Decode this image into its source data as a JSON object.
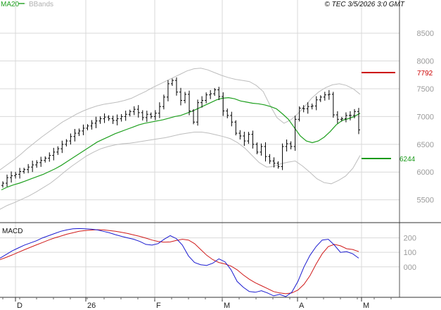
{
  "header": {
    "ma_label": "MA20",
    "bb_label": "BBands",
    "credit": "© TEC 3/5/2026 3:0 GMT"
  },
  "colors": {
    "ma": "#1fa01f",
    "bbands": "#bdbdbd",
    "price": "#000000",
    "resistance": "#cc0000",
    "support": "#1a9a1a",
    "macd": "#1a1ad0",
    "signal": "#d01a1a",
    "grid": "#d9d9d9"
  },
  "chart_data": [
    {
      "type": "ohlc",
      "title": "",
      "y_ticks": [
        8500,
        8000,
        7500,
        7000,
        6500,
        6000,
        5500
      ],
      "ylim": [
        5090,
        8920
      ],
      "x_ticks": [
        "D",
        "26",
        "F",
        "M",
        "A",
        "M"
      ],
      "grid": true,
      "annotations": [
        {
          "label": "7792",
          "value": 7792,
          "color": "#cc0000"
        },
        {
          "label": "6244",
          "value": 6244,
          "color": "#1a9a1a"
        }
      ],
      "series": [
        {
          "name": "price",
          "values": [
            5800,
            5900,
            5935,
            5960,
            6010,
            6045,
            6090,
            6130,
            6170,
            6210,
            6250,
            6300,
            6360,
            6420,
            6500,
            6560,
            6640,
            6700,
            6740,
            6790,
            6830,
            6880,
            6920,
            6960,
            6990,
            6960,
            6930,
            6960,
            7000,
            7040,
            7090,
            7130,
            7070,
            6980,
            7040,
            7000,
            7060,
            7180,
            7350,
            7590,
            7650,
            7440,
            7290,
            7400,
            7100,
            6900,
            7250,
            7290,
            7390,
            7410,
            7480,
            7360,
            7100,
            7020,
            6900,
            6700,
            6650,
            6560,
            6680,
            6500,
            6360,
            6460,
            6280,
            6200,
            6160,
            6100,
            6460,
            6510,
            6460,
            6950,
            7150,
            7140,
            7180,
            7190,
            7300,
            7350,
            7390,
            7400,
            7030,
            6950,
            6960,
            7020,
            7020,
            7090,
            6760
          ]
        },
        {
          "name": "MA20",
          "values": [
            5680,
            5730,
            5770,
            5800,
            5840,
            5880,
            5920,
            5960,
            6010,
            6060,
            6120,
            6190,
            6260,
            6330,
            6400,
            6470,
            6540,
            6590,
            6640,
            6690,
            6730,
            6770,
            6810,
            6850,
            6880,
            6900,
            6920,
            6940,
            6970,
            7000,
            7020,
            7060,
            7100,
            7150,
            7200,
            7250,
            7300,
            7330,
            7340,
            7320,
            7280,
            7260,
            7240,
            7230,
            7210,
            7180,
            7140,
            7050,
            6950,
            6800,
            6650,
            6560,
            6530,
            6560,
            6630,
            6730,
            6850,
            6930,
            6960,
            7000,
            7060
          ]
        },
        {
          "name": "BBands upper",
          "values": [
            6040,
            6130,
            6220,
            6320,
            6430,
            6530,
            6630,
            6720,
            6810,
            6900,
            6970,
            7040,
            7100,
            7150,
            7190,
            7220,
            7240,
            7260,
            7290,
            7330,
            7390,
            7450,
            7520,
            7580,
            7640,
            7700,
            7760,
            7820,
            7860,
            7870,
            7840,
            7790,
            7740,
            7700,
            7670,
            7650,
            7630,
            7560,
            7450,
            7200,
            6980,
            6880,
            6940,
            7050,
            7180,
            7330,
            7440,
            7520,
            7570,
            7590,
            7560,
            7500,
            7400
          ]
        },
        {
          "name": "BBands lower",
          "values": [
            5330,
            5400,
            5450,
            5510,
            5570,
            5640,
            5720,
            5800,
            5900,
            6010,
            6110,
            6200,
            6290,
            6360,
            6420,
            6460,
            6490,
            6510,
            6520,
            6540,
            6560,
            6580,
            6600,
            6620,
            6650,
            6680,
            6700,
            6720,
            6720,
            6700,
            6670,
            6640,
            6600,
            6530,
            6430,
            6300,
            6170,
            6090,
            6100,
            6150,
            6180,
            6200,
            6110,
            6000,
            5880,
            5810,
            5790,
            5850,
            5930,
            6070,
            6300
          ]
        }
      ]
    },
    {
      "type": "line",
      "title": "MACD",
      "y_ticks": [
        "200",
        "100",
        "000"
      ],
      "ylim": [
        -210,
        300
      ],
      "series": [
        {
          "name": "MACD",
          "values": [
            60,
            85,
            110,
            130,
            150,
            165,
            180,
            200,
            215,
            230,
            245,
            255,
            262,
            264,
            262,
            260,
            255,
            245,
            235,
            222,
            210,
            200,
            190,
            175,
            155,
            150,
            160,
            190,
            215,
            195,
            150,
            75,
            30,
            15,
            10,
            25,
            55,
            35,
            -20,
            -100,
            -140,
            -170,
            -175,
            -165,
            -180,
            -200,
            -190,
            -205,
            -175,
            -100,
            0,
            80,
            140,
            185,
            190,
            150,
            100,
            105,
            90,
            60
          ]
        },
        {
          "name": "Signal",
          "values": [
            50,
            65,
            82,
            100,
            118,
            135,
            152,
            168,
            185,
            200,
            212,
            225,
            235,
            245,
            250,
            254,
            256,
            255,
            250,
            245,
            238,
            230,
            220,
            210,
            198,
            185,
            175,
            170,
            172,
            182,
            190,
            185,
            160,
            120,
            80,
            50,
            30,
            20,
            5,
            -20,
            -55,
            -85,
            -110,
            -130,
            -150,
            -170,
            -180,
            -185,
            -180,
            -160,
            -120,
            -60,
            20,
            90,
            140,
            155,
            145,
            125,
            120,
            105
          ]
        }
      ]
    }
  ]
}
